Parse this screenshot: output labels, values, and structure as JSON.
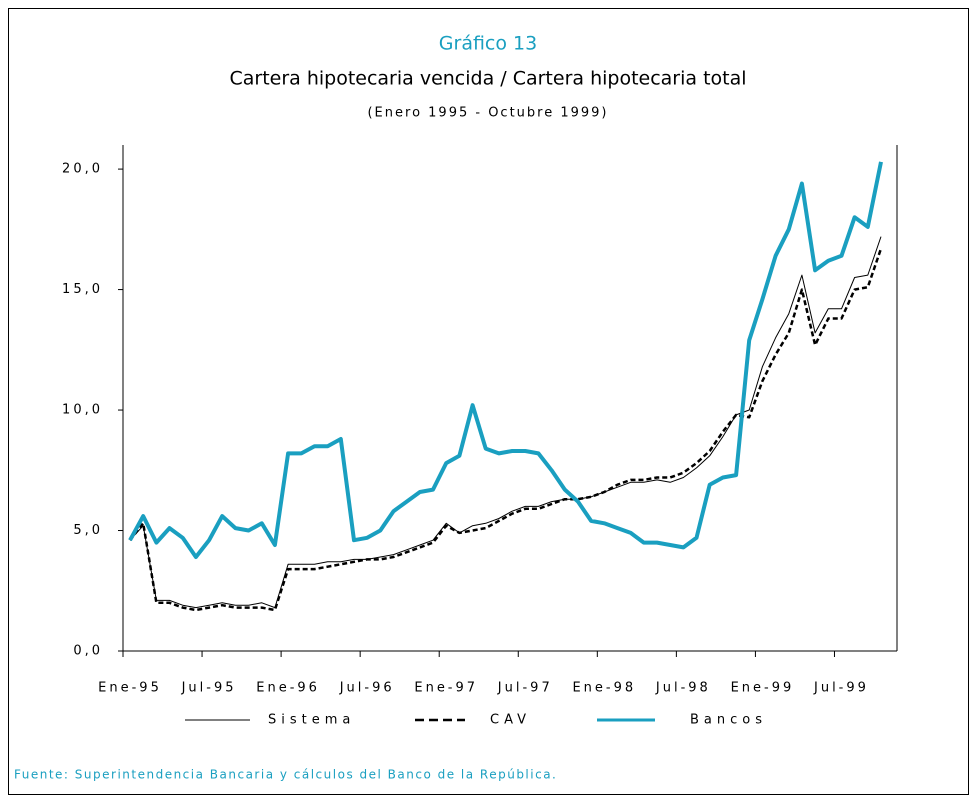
{
  "chart_data": {
    "type": "line",
    "title": "Gráfico 13",
    "subtitle": "Cartera hipotecaria vencida / Cartera hipotecaria total",
    "period": "(Enero 1995 - Octubre 1999)",
    "source": "Fuente: Superintendencia Bancaria y cálculos del Banco de la República.",
    "categories": [
      "Ene-95",
      null,
      null,
      null,
      null,
      null,
      "Jul-95",
      null,
      null,
      null,
      null,
      null,
      "Ene-96",
      null,
      null,
      null,
      null,
      null,
      "Jul-96",
      null,
      null,
      null,
      null,
      null,
      "Ene-97",
      null,
      null,
      null,
      null,
      null,
      "Jul-97",
      null,
      null,
      null,
      null,
      null,
      "Ene-98",
      null,
      null,
      null,
      null,
      null,
      "Jul-98",
      null,
      null,
      null,
      null,
      null,
      "Ene-99",
      null,
      null,
      null,
      null,
      null,
      "Jul-99",
      null,
      null,
      null
    ],
    "ylim": [
      0,
      21
    ],
    "yticks": [
      {
        "value": 0,
        "label": "0,0"
      },
      {
        "value": 5,
        "label": "5,0"
      },
      {
        "value": 10,
        "label": "10,0"
      },
      {
        "value": 15,
        "label": "15,0"
      },
      {
        "value": 20,
        "label": "20,0"
      }
    ],
    "series": [
      {
        "name": "Sistema",
        "color": "#000000",
        "dash": "solid",
        "width": 1,
        "values": [
          4.6,
          5.2,
          2.1,
          2.1,
          1.9,
          1.8,
          1.9,
          2.0,
          1.9,
          1.9,
          2.0,
          1.8,
          3.6,
          3.6,
          3.6,
          3.7,
          3.7,
          3.8,
          3.8,
          3.9,
          4.0,
          4.2,
          4.4,
          4.6,
          5.3,
          4.9,
          5.2,
          5.3,
          5.5,
          5.8,
          6.0,
          6.0,
          6.2,
          6.3,
          6.3,
          6.4,
          6.6,
          6.8,
          7.0,
          7.0,
          7.1,
          7.0,
          7.2,
          7.6,
          8.1,
          8.9,
          9.8,
          10.0,
          11.8,
          13.0,
          14.0,
          15.6,
          13.2,
          14.2,
          14.2,
          15.5,
          15.6,
          17.2
        ]
      },
      {
        "name": "CAV",
        "color": "#000000",
        "dash": "dashed",
        "width": 2.5,
        "values": [
          4.6,
          5.3,
          2.0,
          2.0,
          1.8,
          1.7,
          1.8,
          1.9,
          1.8,
          1.8,
          1.8,
          1.7,
          3.4,
          3.4,
          3.4,
          3.5,
          3.6,
          3.7,
          3.8,
          3.8,
          3.9,
          4.1,
          4.3,
          4.5,
          5.2,
          4.9,
          5.0,
          5.1,
          5.4,
          5.7,
          5.9,
          5.9,
          6.1,
          6.3,
          6.3,
          6.4,
          6.6,
          6.9,
          7.1,
          7.1,
          7.2,
          7.2,
          7.4,
          7.8,
          8.3,
          9.1,
          9.8,
          9.7,
          11.2,
          12.3,
          13.2,
          15.0,
          12.7,
          13.8,
          13.8,
          15.0,
          15.1,
          16.7
        ]
      },
      {
        "name": "Bancos",
        "color": "#1a9fc0",
        "dash": "solid",
        "width": 4,
        "values": [
          4.6,
          5.6,
          4.5,
          5.1,
          4.7,
          3.9,
          4.6,
          5.6,
          5.1,
          5.0,
          5.3,
          4.4,
          8.2,
          8.2,
          8.5,
          8.5,
          8.8,
          4.6,
          4.7,
          5.0,
          5.8,
          6.2,
          6.6,
          6.7,
          7.8,
          8.1,
          10.2,
          8.4,
          8.2,
          8.3,
          8.3,
          8.2,
          7.5,
          6.7,
          6.2,
          5.4,
          5.3,
          5.1,
          4.9,
          4.5,
          4.5,
          4.4,
          4.3,
          4.7,
          6.9,
          7.2,
          7.3,
          12.9,
          14.6,
          16.4,
          17.5,
          19.4,
          15.8,
          16.2,
          16.4,
          18.0,
          17.6,
          20.3
        ]
      }
    ]
  }
}
